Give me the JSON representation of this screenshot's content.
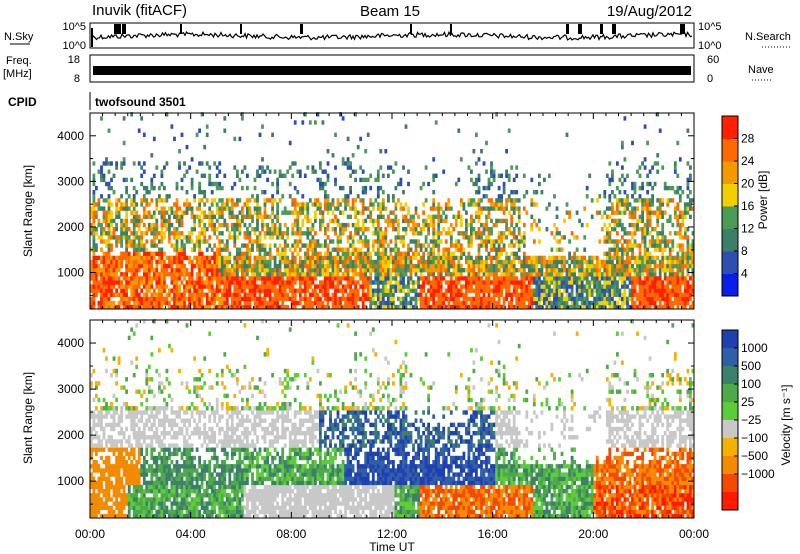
{
  "header": {
    "station": "Inuvik (fitACF)",
    "beam": "Beam 15",
    "date": "19/Aug/2012"
  },
  "noise_panel": {
    "left_label": "N.Sky",
    "left_ticks": [
      "10^5",
      "10^0"
    ],
    "right_ticks": [
      "10^5",
      "10^0"
    ],
    "right_label": "N.Search"
  },
  "freq_panel": {
    "left_label_1": "Freq.",
    "left_label_2": "[MHz]",
    "left_ticks": [
      "18",
      "8"
    ],
    "right_ticks": [
      "60",
      "0"
    ],
    "right_label": "Nave"
  },
  "cpid_panel": {
    "label": "CPID",
    "program": "twofsound 3501"
  },
  "chart_data": [
    {
      "type": "heatmap",
      "parameter": "power",
      "ylabel": "Slant Range [km]",
      "ylim": [
        200,
        4500
      ],
      "y_ticks": [
        "1000",
        "2000",
        "3000",
        "4000"
      ],
      "xlim_hours": [
        0,
        24
      ],
      "colorbar": {
        "label": "Power [dB]",
        "ticks": [
          "4",
          "8",
          "12",
          "16",
          "20",
          "24",
          "28"
        ],
        "colors": [
          "#0a1ee8",
          "#2d4fb4",
          "#3c7f66",
          "#4c9a58",
          "#f3cf00",
          "#f39a00",
          "#ff6a00",
          "#ff2000"
        ]
      }
    },
    {
      "type": "heatmap",
      "parameter": "velocity",
      "ylabel": "Slant Range [km]",
      "ylim": [
        200,
        4500
      ],
      "y_ticks": [
        "1000",
        "2000",
        "3000",
        "4000"
      ],
      "xlim_hours": [
        0,
        24
      ],
      "colorbar": {
        "label": "Velocity [m s⁻¹]",
        "ticks": [
          "1000",
          "500",
          "100",
          "25",
          "−25",
          "−100",
          "−500",
          "−1000"
        ],
        "colors": [
          "#2040b0",
          "#2e5fa8",
          "#3c7f6a",
          "#4ea94a",
          "#5ccd38",
          "#c8c8c8",
          "#f3b200",
          "#f38a00",
          "#f34a00",
          "#ff1a00"
        ]
      }
    }
  ],
  "x_axis": {
    "ticks": [
      "00:00",
      "04:00",
      "08:00",
      "12:00",
      "16:00",
      "20:00",
      "00:00"
    ],
    "label": "Time UT"
  }
}
